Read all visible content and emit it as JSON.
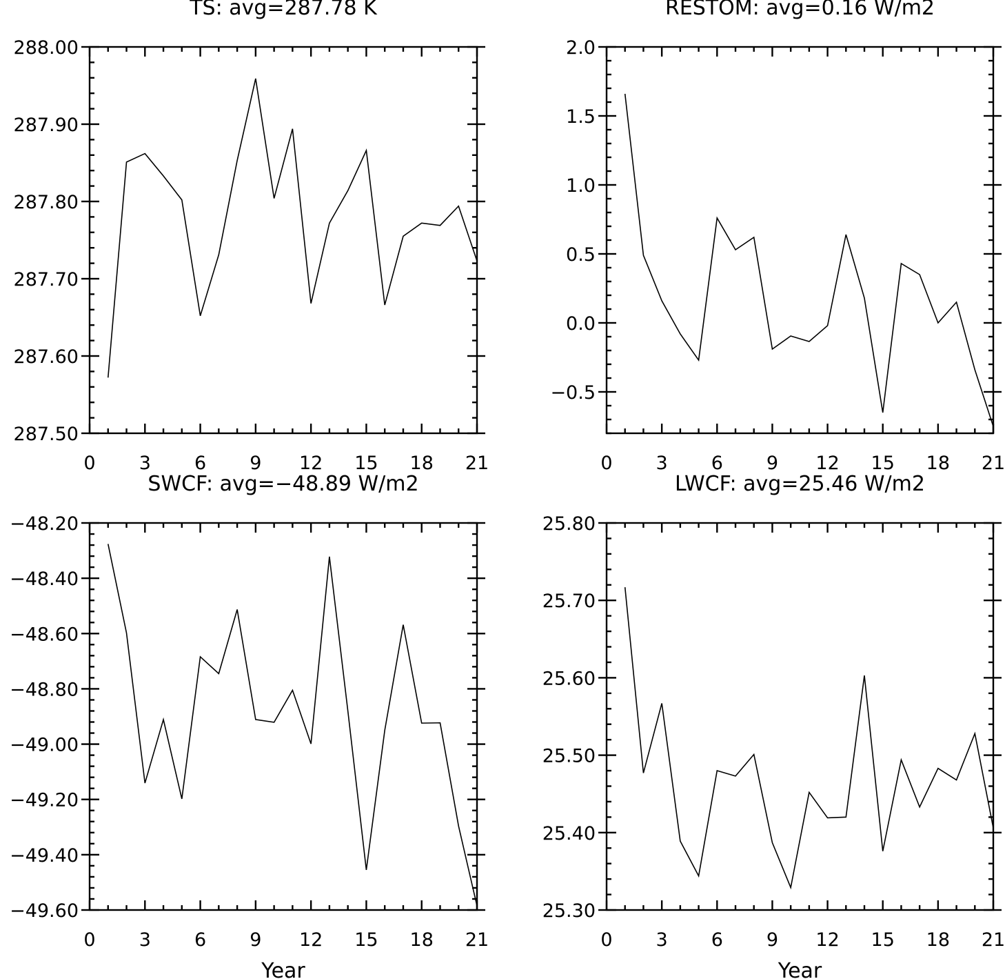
{
  "chart_data": [
    {
      "type": "line",
      "title": "TS: avg=287.78 K",
      "xlabel": "",
      "ylabel": "",
      "xlim": [
        0,
        21
      ],
      "ylim": [
        287.5,
        288.0
      ],
      "xticks": [
        "0",
        "3",
        "6",
        "9",
        "12",
        "15",
        "18",
        "21"
      ],
      "yticks": [
        "287.50",
        "287.60",
        "287.70",
        "287.80",
        "287.90",
        "288.00"
      ],
      "x": [
        1,
        2,
        3,
        4,
        5,
        6,
        7,
        8,
        9,
        10,
        11,
        12,
        13,
        14,
        15,
        16,
        17,
        18,
        19,
        20,
        21
      ],
      "series": [
        {
          "values": [
            287.572,
            287.851,
            287.862,
            287.833,
            287.802,
            287.652,
            287.731,
            287.853,
            287.959,
            287.804,
            287.894,
            287.668,
            287.772,
            287.814,
            287.866,
            287.666,
            287.755,
            287.772,
            287.769,
            287.794,
            287.723
          ]
        }
      ],
      "grid": false,
      "color": "#000000"
    },
    {
      "type": "line",
      "title": "RESTOM: avg=0.16 W/m2",
      "xlabel": "",
      "ylabel": "",
      "xlim": [
        0,
        21
      ],
      "ylim": [
        -0.8,
        2.0
      ],
      "xticks": [
        "0",
        "3",
        "6",
        "9",
        "12",
        "15",
        "18",
        "21"
      ],
      "yticks": [
        "−0.5",
        "0.0",
        "0.5",
        "1.0",
        "1.5",
        "2.0"
      ],
      "x": [
        1,
        2,
        3,
        4,
        5,
        6,
        7,
        8,
        9,
        10,
        11,
        12,
        13,
        14,
        15,
        16,
        17,
        18,
        19,
        20,
        21
      ],
      "series": [
        {
          "values": [
            1.66,
            0.49,
            0.16,
            -0.08,
            -0.27,
            0.76,
            0.53,
            0.62,
            -0.19,
            -0.095,
            -0.135,
            -0.02,
            0.64,
            0.18,
            -0.65,
            0.43,
            0.35,
            0.0,
            0.15,
            -0.34,
            -0.75
          ]
        }
      ],
      "grid": false,
      "color": "#000000"
    },
    {
      "type": "line",
      "title": "SWCF: avg=−48.89 W/m2",
      "xlabel": "Year",
      "ylabel": "",
      "xlim": [
        0,
        21
      ],
      "ylim": [
        -49.6,
        -48.2
      ],
      "xticks": [
        "0",
        "3",
        "6",
        "9",
        "12",
        "15",
        "18",
        "21"
      ],
      "yticks": [
        "−49.60",
        "−49.40",
        "−49.20",
        "−49.00",
        "−48.80",
        "−48.60",
        "−48.40",
        "−48.20"
      ],
      "x": [
        1,
        2,
        3,
        4,
        5,
        6,
        7,
        8,
        9,
        10,
        11,
        12,
        13,
        14,
        15,
        16,
        17,
        18,
        19,
        20,
        21
      ],
      "series": [
        {
          "values": [
            -48.276,
            -48.598,
            -49.141,
            -48.911,
            -49.198,
            -48.684,
            -48.745,
            -48.513,
            -48.911,
            -48.921,
            -48.805,
            -48.999,
            -48.322,
            -48.88,
            -49.455,
            -48.95,
            -48.568,
            -48.924,
            -48.923,
            -49.296,
            -49.585
          ]
        }
      ],
      "grid": false,
      "color": "#000000"
    },
    {
      "type": "line",
      "title": "LWCF: avg=25.46 W/m2",
      "xlabel": "Year",
      "ylabel": "",
      "xlim": [
        0,
        21
      ],
      "ylim": [
        25.3,
        25.8
      ],
      "xticks": [
        "0",
        "3",
        "6",
        "9",
        "12",
        "15",
        "18",
        "21"
      ],
      "yticks": [
        "25.30",
        "25.40",
        "25.50",
        "25.60",
        "25.70",
        "25.80"
      ],
      "x": [
        1,
        2,
        3,
        4,
        5,
        6,
        7,
        8,
        9,
        10,
        11,
        12,
        13,
        14,
        15,
        16,
        17,
        18,
        19,
        20,
        21
      ],
      "series": [
        {
          "values": [
            25.717,
            25.477,
            25.567,
            25.389,
            25.344,
            25.48,
            25.473,
            25.501,
            25.387,
            25.329,
            25.452,
            25.419,
            25.42,
            25.603,
            25.376,
            25.494,
            25.433,
            25.483,
            25.468,
            25.528,
            25.406
          ]
        }
      ],
      "grid": false,
      "color": "#000000"
    }
  ]
}
